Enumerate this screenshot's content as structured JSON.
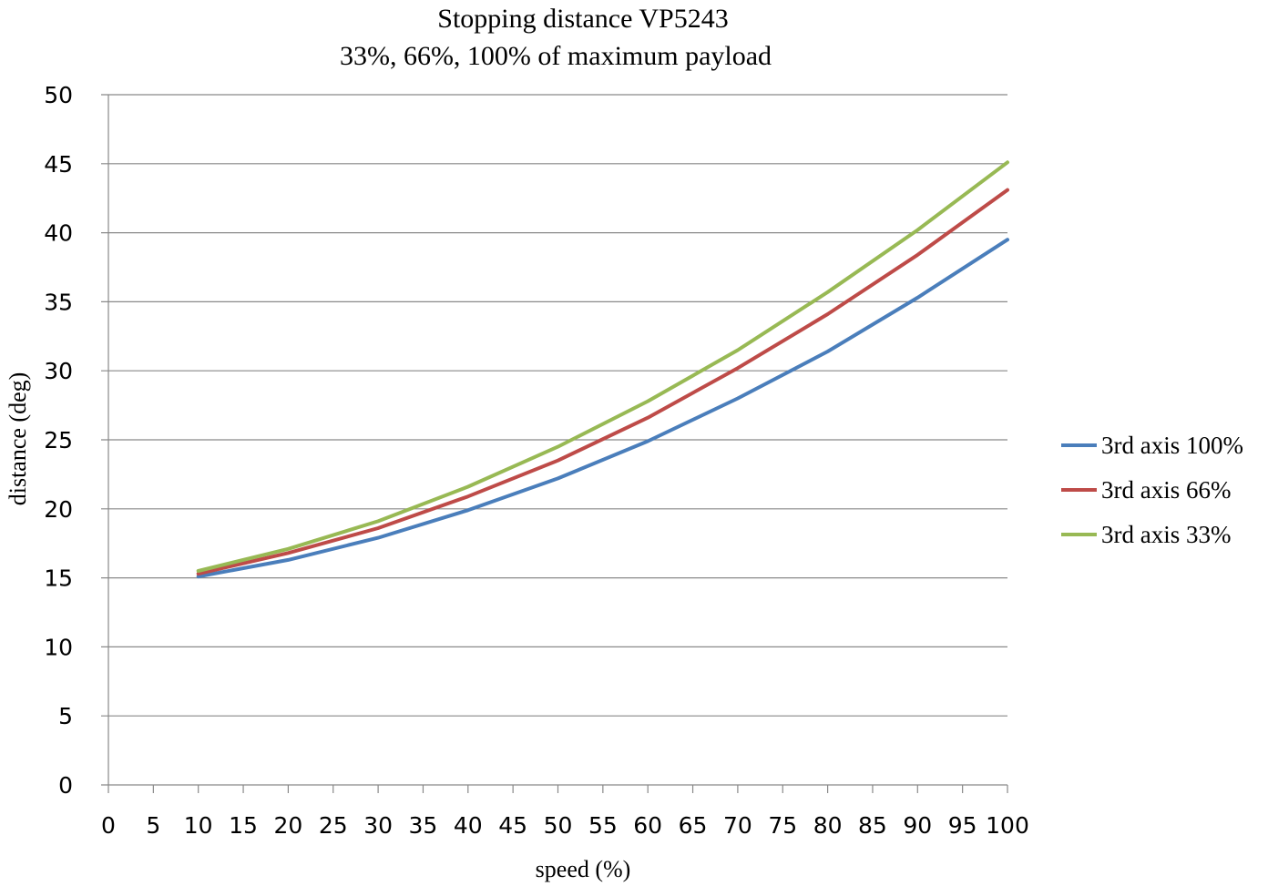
{
  "chart_data": {
    "type": "line",
    "title": "Stopping distance VP5243",
    "subtitle": "33%, 66%, 100% of maximum payload",
    "xlabel": "speed (%)",
    "ylabel": "distance (deg)",
    "xlim": [
      0,
      100
    ],
    "ylim": [
      0,
      50
    ],
    "x_ticks": [
      "0",
      "5",
      "10",
      "15",
      "20",
      "25",
      "30",
      "35",
      "40",
      "45",
      "50",
      "55",
      "60",
      "65",
      "70",
      "75",
      "80",
      "85",
      "90",
      "95",
      "100"
    ],
    "y_ticks": [
      "0",
      "5",
      "10",
      "15",
      "20",
      "25",
      "30",
      "35",
      "40",
      "45",
      "50"
    ],
    "grid": true,
    "legend_position": "right",
    "x": [
      10,
      20,
      30,
      40,
      50,
      60,
      70,
      80,
      90,
      100
    ],
    "series": [
      {
        "name": "3rd axis 100%",
        "color": "#4A7EBB",
        "values": [
          15.1,
          16.3,
          17.9,
          19.9,
          22.2,
          24.9,
          28.0,
          31.4,
          35.3,
          39.5
        ]
      },
      {
        "name": "3rd axis 66%",
        "color": "#BE4B48",
        "values": [
          15.3,
          16.8,
          18.6,
          20.9,
          23.5,
          26.6,
          30.2,
          34.1,
          38.4,
          43.1
        ]
      },
      {
        "name": "3rd axis 33%",
        "color": "#98B954",
        "values": [
          15.5,
          17.1,
          19.1,
          21.6,
          24.5,
          27.8,
          31.5,
          35.7,
          40.2,
          45.1
        ]
      }
    ]
  }
}
